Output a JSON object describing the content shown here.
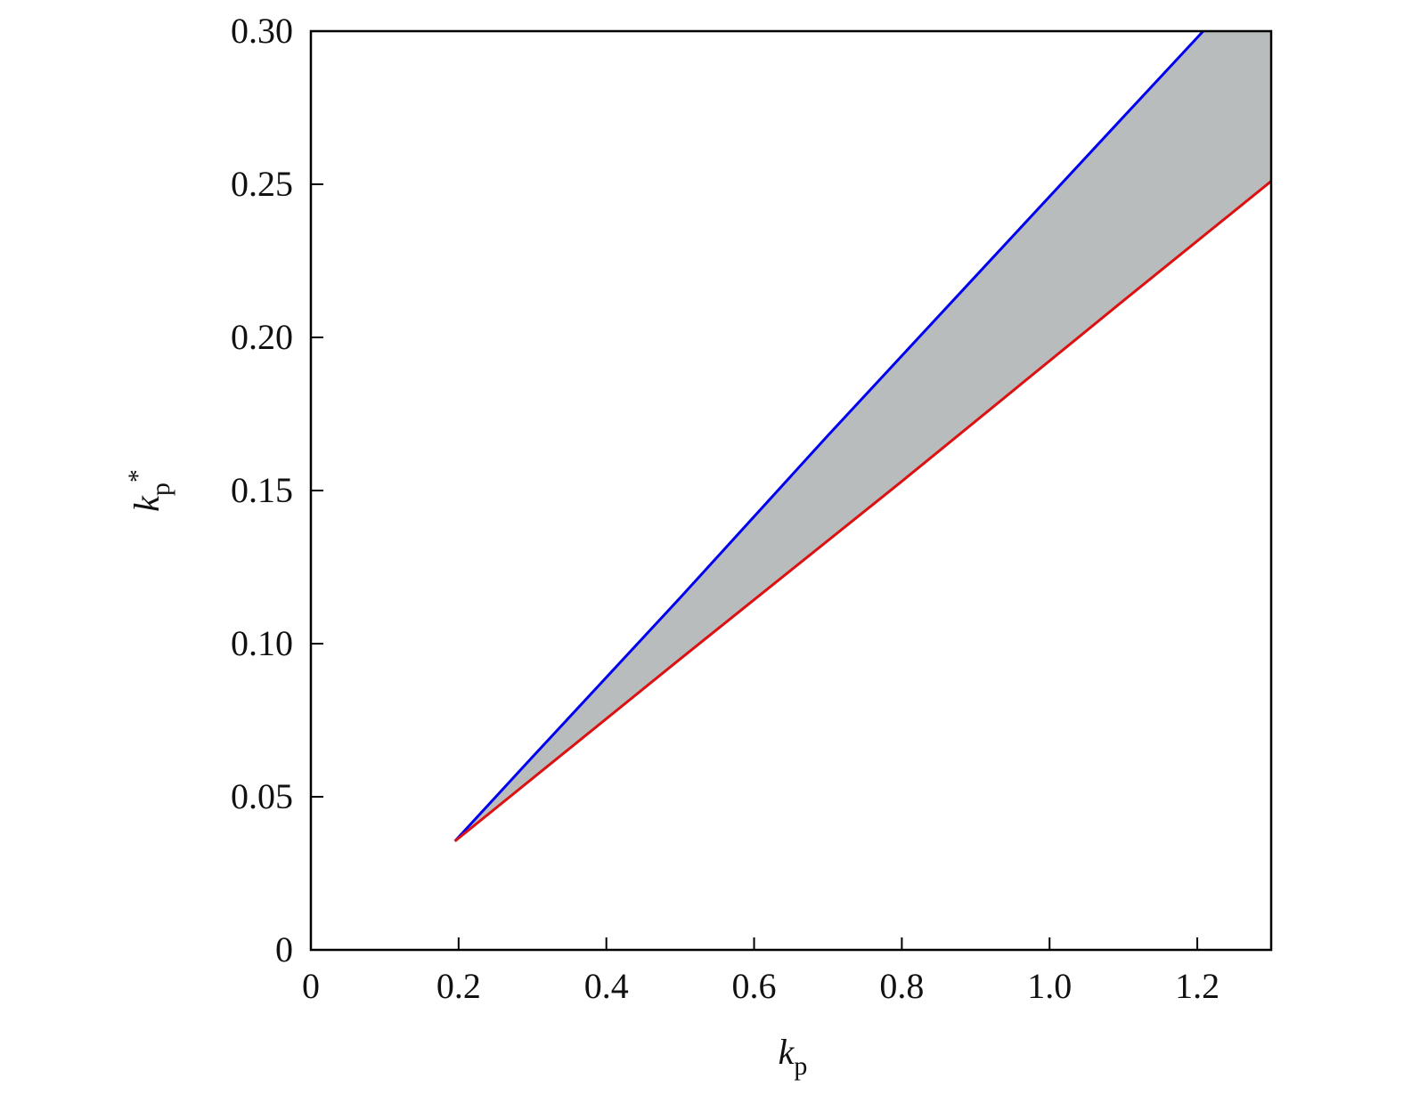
{
  "chart_data": {
    "type": "line",
    "xlabel": {
      "symbol": "k",
      "subscript": "p"
    },
    "ylabel": {
      "symbol": "k",
      "subscript": "p",
      "superscript": "*"
    },
    "xlim": [
      0,
      1.3
    ],
    "ylim": [
      0,
      0.3
    ],
    "xticks": [
      0,
      0.2,
      0.4,
      0.6,
      0.8,
      {
        "value": 1,
        "label": "1.0"
      },
      1.2
    ],
    "yticks": [
      0,
      0.05,
      {
        "value": 0.1,
        "label": "0.10"
      },
      0.15,
      {
        "value": 0.2,
        "label": "0.20"
      },
      0.25,
      {
        "value": 0.3,
        "label": "0.30"
      }
    ],
    "fill_between": true,
    "fill_color": "#b9bcbd",
    "series": [
      {
        "color": "#0000ee",
        "x": [
          0.195,
          0.3,
          0.5,
          0.7,
          0.9,
          1.1,
          1.208
        ],
        "values": [
          0.0355,
          0.063,
          0.115,
          0.168,
          0.22,
          0.272,
          0.3
        ]
      },
      {
        "color": "#dd1111",
        "x": [
          0.195,
          0.5,
          0.8,
          1.1,
          1.3
        ],
        "values": [
          0.0355,
          0.095,
          0.153,
          0.212,
          0.251
        ]
      }
    ]
  }
}
